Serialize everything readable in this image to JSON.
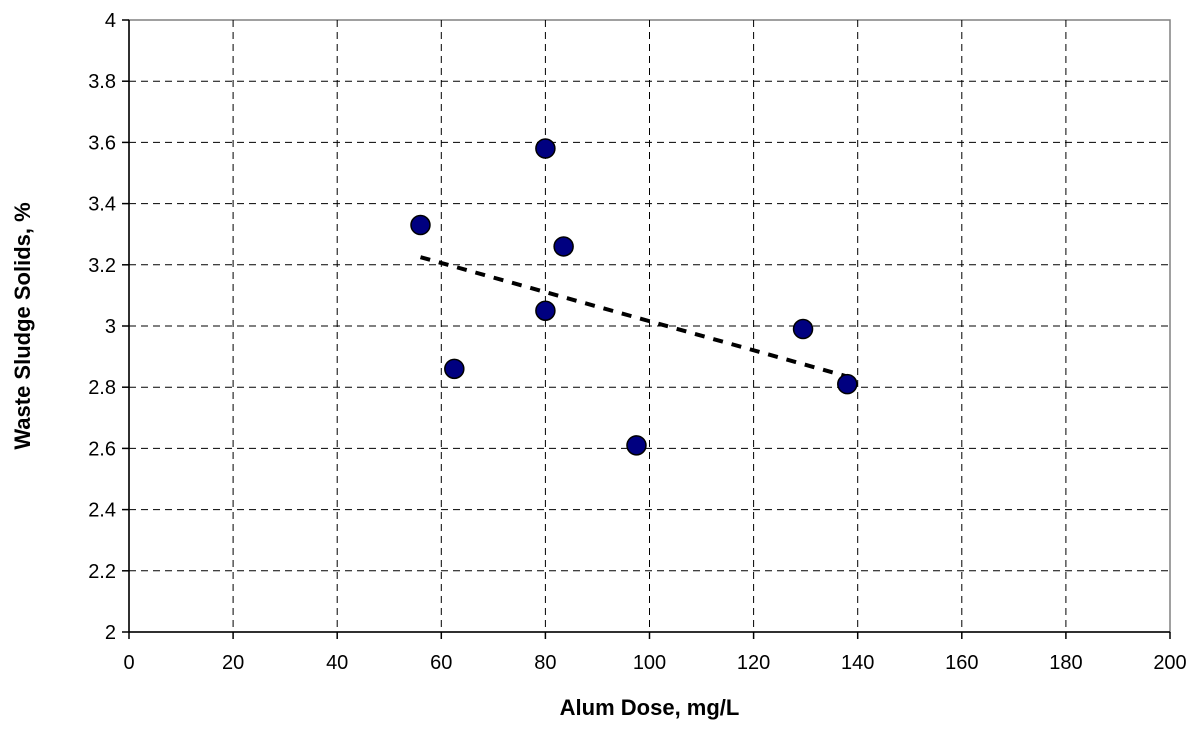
{
  "chart_data": {
    "type": "scatter",
    "title": "",
    "xlabel": "Alum Dose, mg/L",
    "ylabel": "Waste Sludge Solids, %",
    "xlim": [
      0,
      200
    ],
    "ylim": [
      2,
      4
    ],
    "x_ticks": [
      0,
      20,
      40,
      60,
      80,
      100,
      120,
      140,
      160,
      180,
      200
    ],
    "y_ticks": [
      2,
      2.2,
      2.4,
      2.6,
      2.8,
      3,
      3.2,
      3.4,
      3.6,
      3.8,
      4
    ],
    "x_tick_labels": [
      "0",
      "20",
      "40",
      "60",
      "80",
      "100",
      "120",
      "140",
      "160",
      "180",
      "200"
    ],
    "y_tick_labels": [
      "2",
      "2.2",
      "2.4",
      "2.6",
      "2.8",
      "3",
      "3.2",
      "3.4",
      "3.6",
      "3.8",
      "4"
    ],
    "grid": true,
    "legend": "none",
    "series": [
      {
        "points": [
          {
            "x": 56,
            "y": 3.33
          },
          {
            "x": 62.5,
            "y": 2.86
          },
          {
            "x": 80,
            "y": 3.58
          },
          {
            "x": 80,
            "y": 3.05
          },
          {
            "x": 83.5,
            "y": 3.26
          },
          {
            "x": 97.5,
            "y": 2.61
          },
          {
            "x": 129.5,
            "y": 2.99
          },
          {
            "x": 138,
            "y": 2.81
          }
        ],
        "marker_color": "#000080"
      }
    ],
    "trendline": {
      "type": "linear",
      "from": {
        "x": 56,
        "y": 3.225
      },
      "to": {
        "x": 138,
        "y": 2.835
      },
      "color": "#000000",
      "style": "dashed"
    }
  }
}
